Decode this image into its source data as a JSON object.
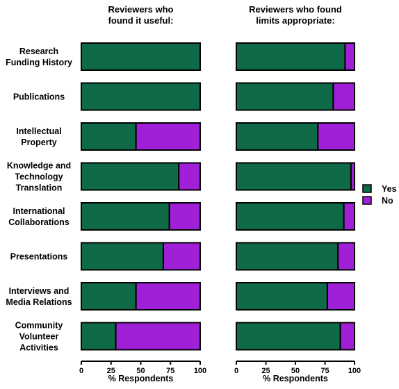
{
  "chart_data": {
    "type": "bar",
    "orientation": "horizontal",
    "stacked": true,
    "categories": [
      [
        "Research",
        "Funding History"
      ],
      [
        "Publications"
      ],
      [
        "Intellectual",
        "Property"
      ],
      [
        "Knowledge and",
        "Technology",
        "Translation"
      ],
      [
        "International",
        "Collaborations"
      ],
      [
        "Presentations"
      ],
      [
        "Interviews and",
        "Media Relations"
      ],
      [
        "Community",
        "Volunteer",
        "Activities"
      ]
    ],
    "panels": [
      {
        "title": [
          "Reviewers who",
          "found it useful:"
        ],
        "xlabel": "% Respondents",
        "xlim": [
          0,
          100
        ],
        "xticks": [
          0,
          25,
          50,
          75,
          100
        ],
        "series": [
          {
            "name": "Yes",
            "values": [
              100,
              100,
              46,
              82,
              74,
              69,
              46,
              29
            ]
          },
          {
            "name": "No",
            "values": [
              0,
              0,
              54,
              18,
              26,
              31,
              54,
              71
            ]
          }
        ]
      },
      {
        "title": [
          "Reviewers who found",
          "limits appropriate:"
        ],
        "xlabel": "% Respondents",
        "xlim": [
          0,
          100
        ],
        "xticks": [
          0,
          25,
          50,
          75,
          100
        ],
        "series": [
          {
            "name": "Yes",
            "values": [
              92,
              82,
              69,
              97,
              91,
              86,
              77,
              88
            ]
          },
          {
            "name": "No",
            "values": [
              8,
              18,
              31,
              3,
              9,
              14,
              23,
              12
            ]
          }
        ]
      }
    ],
    "legend": {
      "position": "right",
      "items": [
        {
          "name": "Yes",
          "color": "#0f6b47"
        },
        {
          "name": "No",
          "color": "#a020d8"
        }
      ]
    },
    "colors": {
      "Yes": "#0f6b47",
      "No": "#a020d8"
    },
    "grid": false
  }
}
